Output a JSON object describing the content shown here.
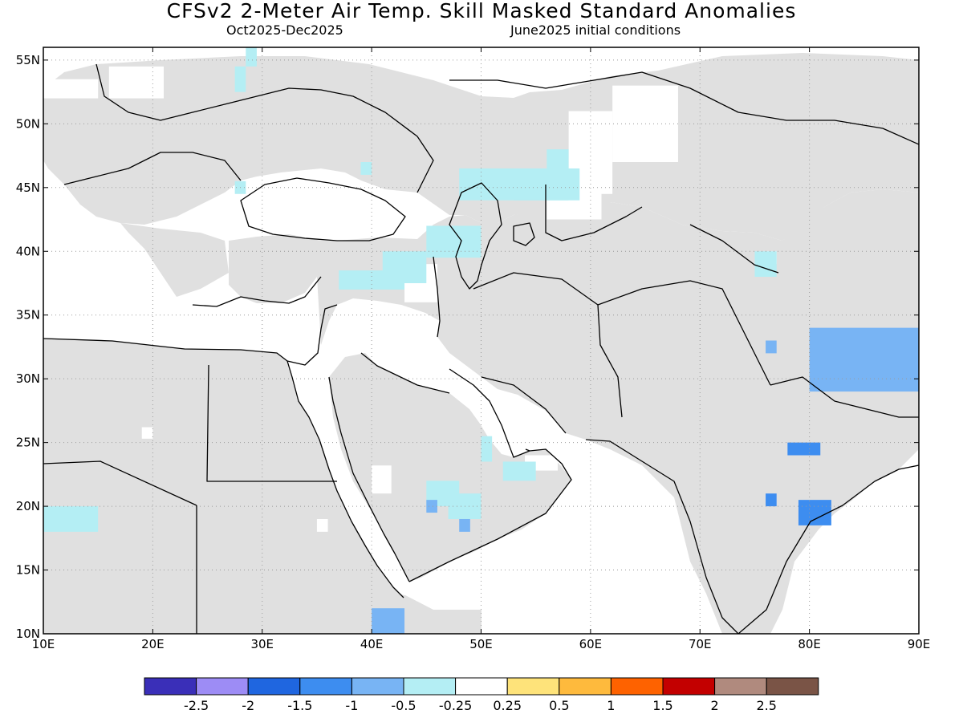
{
  "title": "CFSv2 2-Meter Air Temp. Skill Masked Standard Anomalies",
  "subtitle_left": "Oct2025-Dec2025",
  "subtitle_right": "June2025 initial conditions",
  "map": {
    "lon_range": [
      10,
      90
    ],
    "lat_range": [
      10,
      56
    ],
    "lon_ticks": [
      10,
      20,
      30,
      40,
      50,
      60,
      70,
      80,
      90
    ],
    "lon_tick_labels": [
      "10E",
      "20E",
      "30E",
      "40E",
      "50E",
      "60E",
      "70E",
      "80E",
      "90E"
    ],
    "lat_ticks": [
      10,
      15,
      20,
      25,
      30,
      35,
      40,
      45,
      50,
      55
    ],
    "lat_tick_labels": [
      "10N",
      "15N",
      "20N",
      "25N",
      "30N",
      "35N",
      "40N",
      "45N",
      "50N",
      "55N"
    ],
    "grid": "dotted",
    "land_no_skill_color": "#e0e0e0",
    "anomaly_cells": [
      {
        "lon": [
          10,
          15
        ],
        "lat": [
          52,
          53.5
        ],
        "cat": 6
      },
      {
        "lon": [
          16,
          21
        ],
        "lat": [
          52,
          54.5
        ],
        "cat": 6
      },
      {
        "lon": [
          62,
          68
        ],
        "lat": [
          47,
          53
        ],
        "cat": 6
      },
      {
        "lon": [
          58,
          62
        ],
        "lat": [
          44.5,
          51
        ],
        "cat": 6
      },
      {
        "lon": [
          56,
          61
        ],
        "lat": [
          42.5,
          45.5
        ],
        "cat": 6
      },
      {
        "lon": [
          43,
          46
        ],
        "lat": [
          36,
          39
        ],
        "cat": 6
      },
      {
        "lon": [
          54,
          57
        ],
        "lat": [
          22.8,
          24
        ],
        "cat": 6
      },
      {
        "lon": [
          40,
          41.8
        ],
        "lat": [
          21,
          23.2
        ],
        "cat": 6
      },
      {
        "lon": [
          35,
          36
        ],
        "lat": [
          18,
          19
        ],
        "cat": 6
      },
      {
        "lon": [
          19,
          20
        ],
        "lat": [
          25.3,
          26.2
        ],
        "cat": 6
      },
      {
        "lon": [
          76,
          77
        ],
        "lat": [
          39,
          40
        ],
        "cat": 6
      },
      {
        "lon": [
          10,
          15
        ],
        "lat": [
          18,
          20
        ],
        "cat": 5
      },
      {
        "lon": [
          37,
          43
        ],
        "lat": [
          37,
          38.5
        ],
        "cat": 5
      },
      {
        "lon": [
          41,
          45
        ],
        "lat": [
          37.5,
          40
        ],
        "cat": 5
      },
      {
        "lon": [
          45,
          50
        ],
        "lat": [
          39.5,
          42
        ],
        "cat": 5
      },
      {
        "lon": [
          48,
          56
        ],
        "lat": [
          44,
          46.5
        ],
        "cat": 5
      },
      {
        "lon": [
          56,
          58
        ],
        "lat": [
          44,
          48
        ],
        "cat": 5
      },
      {
        "lon": [
          53,
          59
        ],
        "lat": [
          44,
          46.5
        ],
        "cat": 5
      },
      {
        "lon": [
          45,
          48
        ],
        "lat": [
          20,
          22
        ],
        "cat": 5
      },
      {
        "lon": [
          47,
          50
        ],
        "lat": [
          19,
          21
        ],
        "cat": 5
      },
      {
        "lon": [
          52,
          55
        ],
        "lat": [
          22,
          23.5
        ],
        "cat": 5
      },
      {
        "lon": [
          50,
          51
        ],
        "lat": [
          23.5,
          25.5
        ],
        "cat": 5
      },
      {
        "lon": [
          75,
          77
        ],
        "lat": [
          38,
          40
        ],
        "cat": 5
      },
      {
        "lon": [
          27.5,
          28.5
        ],
        "lat": [
          44.5,
          45.5
        ],
        "cat": 5
      },
      {
        "lon": [
          39,
          40
        ],
        "lat": [
          46,
          47
        ],
        "cat": 5
      },
      {
        "lon": [
          27.5,
          28.5
        ],
        "lat": [
          52.5,
          54.5
        ],
        "cat": 5
      },
      {
        "lon": [
          28.5,
          29.5
        ],
        "lat": [
          54.5,
          56
        ],
        "cat": 5
      },
      {
        "lon": [
          40,
          43
        ],
        "lat": [
          10,
          12
        ],
        "cat": 4
      },
      {
        "lon": [
          45,
          46
        ],
        "lat": [
          19.5,
          20.5
        ],
        "cat": 4
      },
      {
        "lon": [
          48,
          49
        ],
        "lat": [
          18,
          19
        ],
        "cat": 4
      },
      {
        "lon": [
          80,
          90
        ],
        "lat": [
          29,
          34
        ],
        "cat": 4
      },
      {
        "lon": [
          76,
          77
        ],
        "lat": [
          32,
          33
        ],
        "cat": 4
      },
      {
        "lon": [
          78,
          81
        ],
        "lat": [
          24,
          25
        ],
        "cat": 3
      },
      {
        "lon": [
          79,
          82
        ],
        "lat": [
          18.5,
          20.5
        ],
        "cat": 3
      },
      {
        "lon": [
          76,
          77
        ],
        "lat": [
          20,
          21
        ],
        "cat": 3
      }
    ]
  },
  "colorbar": {
    "colors": [
      "#3a2fb8",
      "#9d8cf5",
      "#1f66e0",
      "#3d8df0",
      "#78b4f4",
      "#b4eef4",
      "#ffffff",
      "#fee37a",
      "#feba3d",
      "#fe6200",
      "#c30000",
      "#b08a7e",
      "#7a5446"
    ],
    "labels": [
      "-2.5",
      "-2",
      "-1.5",
      "-1",
      "-0.5",
      "-0.25",
      "0.25",
      "0.5",
      "1",
      "1.5",
      "2",
      "2.5"
    ]
  }
}
